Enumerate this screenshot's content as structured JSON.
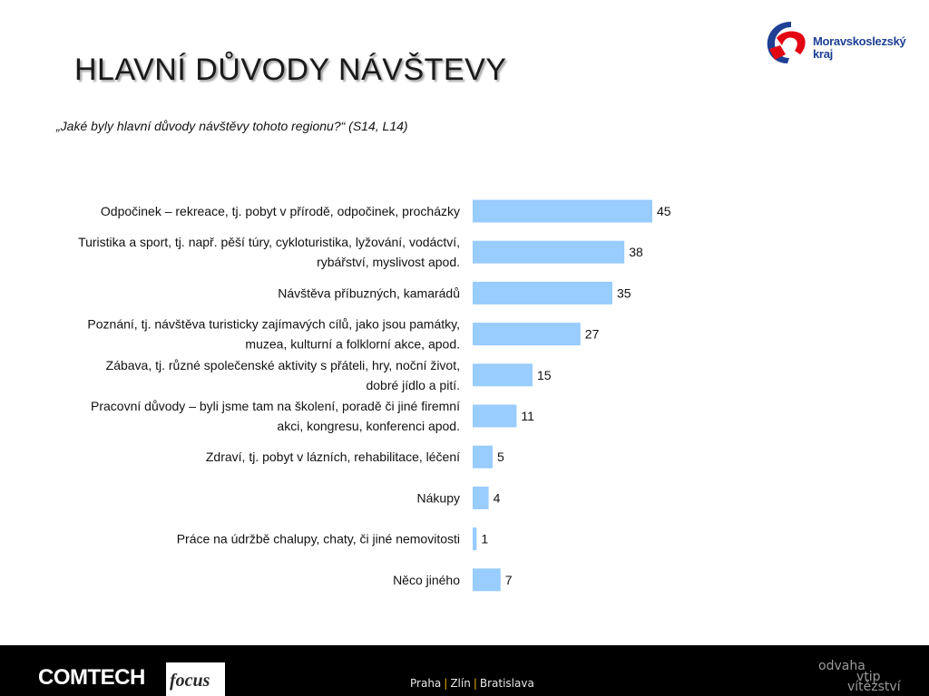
{
  "title": "HLAVNÍ DŮVODY NÁVŠTEVY",
  "subtitle": "„Jaké byly hlavní důvody návštěvy tohoto regionu?“ (S14, L14)",
  "logo": {
    "line1": "Moravskoslezský",
    "line2": "kraj"
  },
  "colors": {
    "bar": "#99ccff",
    "logo_red": "#e30613",
    "logo_blue": "#1e3f93"
  },
  "chart_data": {
    "type": "bar",
    "orientation": "horizontal",
    "categories": [
      [
        "Odpočinek – rekreace, tj. pobyt v přírodě, odpočinek, procházky"
      ],
      [
        "Turistika a sport, tj. např. pěší túry, cykloturistika, lyžování, vodáctví,",
        "rybářství, myslivost apod."
      ],
      [
        "Návštěva příbuzných, kamarádů"
      ],
      [
        "Poznání, tj. návštěva turisticky zajímavých cílů, jako jsou památky,",
        "muzea, kulturní a folklorní akce, apod."
      ],
      [
        "Zábava, tj. různé společenské aktivity s přáteli, hry, noční život,",
        "dobré jídlo a pití."
      ],
      [
        "Pracovní důvody – byli jsme tam na školení, poradě či jiné firemní",
        "akci, kongresu, konferenci apod."
      ],
      [
        "Zdraví, tj. pobyt v lázních, rehabilitace, léčení"
      ],
      [
        "Nákupy"
      ],
      [
        "Práce na údržbě chalupy, chaty, či jiné nemovitosti"
      ],
      [
        "Něco jiného"
      ]
    ],
    "values": [
      45,
      38,
      35,
      27,
      15,
      11,
      5,
      4,
      1,
      7
    ],
    "xlim": [
      0,
      100
    ],
    "grid": false,
    "legend": "none"
  },
  "footer": {
    "brand1": "COMTECH",
    "brand2": "focus",
    "cities": [
      "Praha",
      "Zlín",
      "Bratislava"
    ],
    "motto": [
      "odvaha",
      "vtip",
      "vítězství"
    ]
  }
}
